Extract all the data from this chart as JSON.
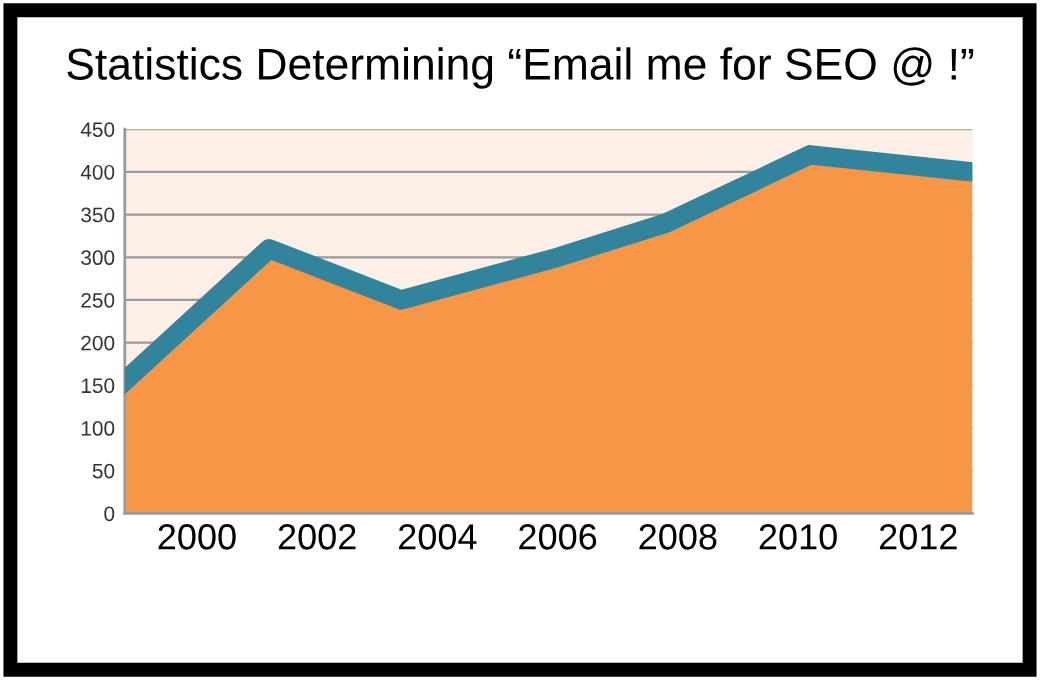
{
  "chart_data": {
    "type": "area",
    "title": "Statistics Determining “Email me for SEO @ !”",
    "x": [
      1998.8,
      2001.2,
      2003.4,
      2006,
      2007.8,
      2010.2,
      2012.9
    ],
    "series": [
      {
        "color": "#f79646",
        "values": [
          155,
          310,
          250,
          300,
          340,
          420,
          400
        ]
      },
      {
        "type": "line",
        "color": "#31849b",
        "values": [
          155,
          310,
          250,
          300,
          340,
          420,
          400
        ]
      }
    ],
    "xlim": [
      1998.8,
      2012.9
    ],
    "xticks": [
      2000,
      2002,
      2004,
      2006,
      2008,
      2010,
      2012
    ],
    "ylim": [
      0,
      450
    ],
    "yticks": [
      0,
      50,
      100,
      150,
      200,
      250,
      300,
      350,
      400,
      450
    ],
    "grid": "y",
    "legend": false
  }
}
